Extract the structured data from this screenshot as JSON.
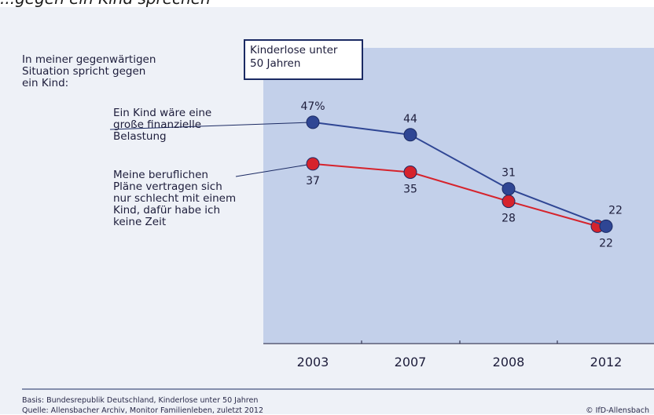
{
  "header": {
    "cut_title": "...gegen ein Kind sprechen"
  },
  "question": "In meiner gegenwärtigen\nSituation spricht gegen\nein Kind:",
  "legend_box": "Kinderlose unter\n50 Jahren",
  "footer": {
    "basis": "Basis: Bundesrepublik Deutschland, Kinderlose unter 50 Jahren",
    "source": "Quelle: Allensbacher Archiv, Monitor Familienleben, zuletzt 2012",
    "credit": "© IfD-Allensbach"
  },
  "colors": {
    "panel": "#c3d0ea",
    "blue": "#2f4694",
    "red": "#d6232c",
    "navy": "#1b2a63"
  },
  "chart_data": {
    "type": "line",
    "categories": [
      "2003",
      "2007",
      "2008",
      "2012"
    ],
    "ylim": [
      0,
      60
    ],
    "grid": false,
    "series": [
      {
        "name": "Ein Kind wäre eine\ngroße finanzielle\nBelastung",
        "color": "#2f4694",
        "values": [
          47,
          44,
          31,
          22
        ],
        "labels": [
          "47%",
          "44",
          "31",
          "22"
        ],
        "label_pos": [
          "above",
          "above",
          "above",
          "above"
        ]
      },
      {
        "name": "Meine beruflichen\nPläne vertragen sich\nnur schlecht mit einem\nKind, dafür habe ich\nkeine Zeit",
        "color": "#d6232c",
        "values": [
          37,
          35,
          28,
          22
        ],
        "labels": [
          "37",
          "35",
          "28",
          "22"
        ],
        "label_pos": [
          "below",
          "below",
          "below",
          "below"
        ]
      }
    ]
  }
}
